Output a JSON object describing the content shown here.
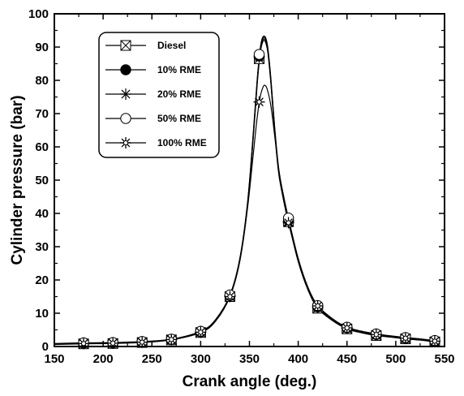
{
  "chart_data": {
    "type": "line",
    "xlabel": "Crank angle (deg.)",
    "ylabel": "Cylinder pressure (bar)",
    "xlim": [
      150,
      550
    ],
    "ylim": [
      0,
      100
    ],
    "xticks": [
      150,
      200,
      250,
      300,
      350,
      400,
      450,
      500,
      550
    ],
    "yticks": [
      0,
      10,
      20,
      30,
      40,
      50,
      60,
      70,
      80,
      90,
      100
    ],
    "grid": false,
    "legend_position": "top-left",
    "series": [
      {
        "name": "Diesel",
        "marker": "boxed-x",
        "x": [
          180,
          210,
          240,
          270,
          300,
          330,
          360,
          390,
          420,
          450,
          480,
          510,
          540
        ],
        "y": [
          0.8,
          0.9,
          1.2,
          2.0,
          4.2,
          15.0,
          86.5,
          37.5,
          11.5,
          5.3,
          3.3,
          2.3,
          1.4
        ]
      },
      {
        "name": "10% RME",
        "marker": "filled-circle",
        "x": [
          180,
          210,
          240,
          270,
          300,
          330,
          360,
          390,
          420,
          450,
          480,
          510,
          540
        ],
        "y": [
          1.0,
          1.1,
          1.4,
          2.1,
          4.4,
          15.3,
          87.3,
          38.0,
          11.9,
          5.6,
          3.6,
          2.5,
          1.6
        ]
      },
      {
        "name": "20% RME",
        "marker": "asterisk",
        "x": [
          180,
          210,
          240,
          270,
          300,
          330,
          360,
          390,
          420,
          450,
          480,
          510,
          540
        ],
        "y": [
          1.0,
          1.0,
          1.3,
          2.0,
          4.3,
          15.2,
          87.0,
          37.6,
          11.7,
          5.5,
          3.5,
          2.4,
          1.5
        ]
      },
      {
        "name": "50% RME",
        "marker": "open-circle",
        "x": [
          180,
          210,
          240,
          270,
          300,
          330,
          360,
          390,
          420,
          450,
          480,
          510,
          540
        ],
        "y": [
          1.1,
          1.2,
          1.5,
          2.2,
          4.6,
          15.5,
          87.8,
          38.6,
          12.3,
          5.8,
          3.8,
          2.7,
          1.8
        ]
      },
      {
        "name": "100% RME",
        "marker": "star",
        "x": [
          180,
          210,
          240,
          270,
          300,
          330,
          360,
          390,
          420,
          450,
          480,
          510,
          540
        ],
        "y": [
          0.9,
          1.0,
          1.3,
          2.1,
          4.3,
          15.0,
          73.5,
          37.2,
          12.2,
          5.6,
          3.6,
          2.5,
          1.6
        ]
      }
    ],
    "curves": [
      {
        "series": "Diesel",
        "x": [
          150,
          180,
          210,
          240,
          270,
          300,
          315,
          330,
          340,
          348,
          354,
          358,
          361,
          363,
          365,
          367,
          369,
          372,
          376,
          380,
          385,
          390,
          400,
          410,
          420,
          435,
          450,
          465,
          480,
          495,
          510,
          525,
          540
        ],
        "y": [
          0.6,
          0.8,
          0.9,
          1.2,
          2.0,
          4.2,
          7.5,
          15.0,
          25.5,
          42.0,
          63.0,
          79.0,
          88.0,
          91.0,
          92.0,
          91.0,
          88.0,
          79.0,
          64.0,
          52.0,
          44.0,
          37.5,
          25.5,
          17.0,
          11.5,
          7.8,
          5.3,
          4.1,
          3.3,
          2.8,
          2.3,
          1.9,
          1.4
        ]
      },
      {
        "series": "10% RME",
        "x": [
          150,
          180,
          210,
          240,
          270,
          300,
          315,
          330,
          340,
          348,
          354,
          358,
          361,
          363,
          365,
          367,
          369,
          372,
          376,
          380,
          385,
          390,
          400,
          410,
          420,
          435,
          450,
          465,
          480,
          495,
          510,
          525,
          540
        ],
        "y": [
          0.8,
          1.0,
          1.1,
          1.4,
          2.1,
          4.4,
          7.8,
          15.3,
          26.0,
          42.8,
          64.0,
          80.0,
          89.0,
          92.0,
          93.0,
          92.0,
          89.0,
          80.0,
          65.0,
          53.0,
          44.8,
          38.0,
          26.0,
          17.4,
          11.9,
          8.1,
          5.6,
          4.4,
          3.6,
          3.0,
          2.5,
          2.1,
          1.6
        ]
      },
      {
        "series": "20% RME",
        "x": [
          150,
          180,
          210,
          240,
          270,
          300,
          315,
          330,
          340,
          348,
          354,
          358,
          361,
          363,
          365,
          367,
          369,
          372,
          376,
          380,
          385,
          390,
          400,
          410,
          420,
          435,
          450,
          465,
          480,
          495,
          510,
          525,
          540
        ],
        "y": [
          0.7,
          1.0,
          1.0,
          1.3,
          2.0,
          4.3,
          7.6,
          15.2,
          25.8,
          42.4,
          63.5,
          79.5,
          88.5,
          91.5,
          92.5,
          91.5,
          88.5,
          79.5,
          64.5,
          52.5,
          44.2,
          37.6,
          25.8,
          17.2,
          11.7,
          7.9,
          5.5,
          4.3,
          3.5,
          2.9,
          2.4,
          2.0,
          1.5
        ]
      },
      {
        "series": "50% RME",
        "x": [
          150,
          180,
          210,
          240,
          270,
          300,
          315,
          330,
          340,
          348,
          354,
          358,
          361,
          363,
          365,
          367,
          369,
          372,
          376,
          380,
          385,
          390,
          400,
          410,
          420,
          435,
          450,
          465,
          480,
          495,
          510,
          525,
          540
        ],
        "y": [
          0.9,
          1.1,
          1.2,
          1.5,
          2.2,
          4.6,
          8.0,
          15.5,
          26.3,
          43.2,
          64.5,
          80.5,
          89.5,
          92.5,
          93.3,
          92.5,
          89.5,
          80.5,
          65.5,
          53.5,
          45.3,
          38.6,
          26.5,
          17.8,
          12.3,
          8.4,
          5.8,
          4.6,
          3.8,
          3.2,
          2.7,
          2.3,
          1.8
        ]
      },
      {
        "series": "100% RME",
        "x": [
          150,
          180,
          210,
          240,
          270,
          300,
          315,
          330,
          340,
          348,
          354,
          358,
          361,
          364,
          366,
          368,
          371,
          374,
          378,
          382,
          386,
          390,
          400,
          410,
          420,
          435,
          450,
          465,
          480,
          495,
          510,
          525,
          540
        ],
        "y": [
          0.7,
          0.9,
          1.0,
          1.3,
          2.1,
          4.3,
          7.6,
          15.0,
          25.5,
          41.5,
          58.0,
          69.0,
          75.0,
          78.0,
          78.5,
          77.5,
          74.0,
          68.0,
          58.0,
          49.0,
          42.5,
          37.2,
          26.2,
          17.5,
          12.2,
          8.2,
          5.6,
          4.4,
          3.6,
          3.0,
          2.5,
          2.1,
          1.6
        ]
      }
    ]
  }
}
